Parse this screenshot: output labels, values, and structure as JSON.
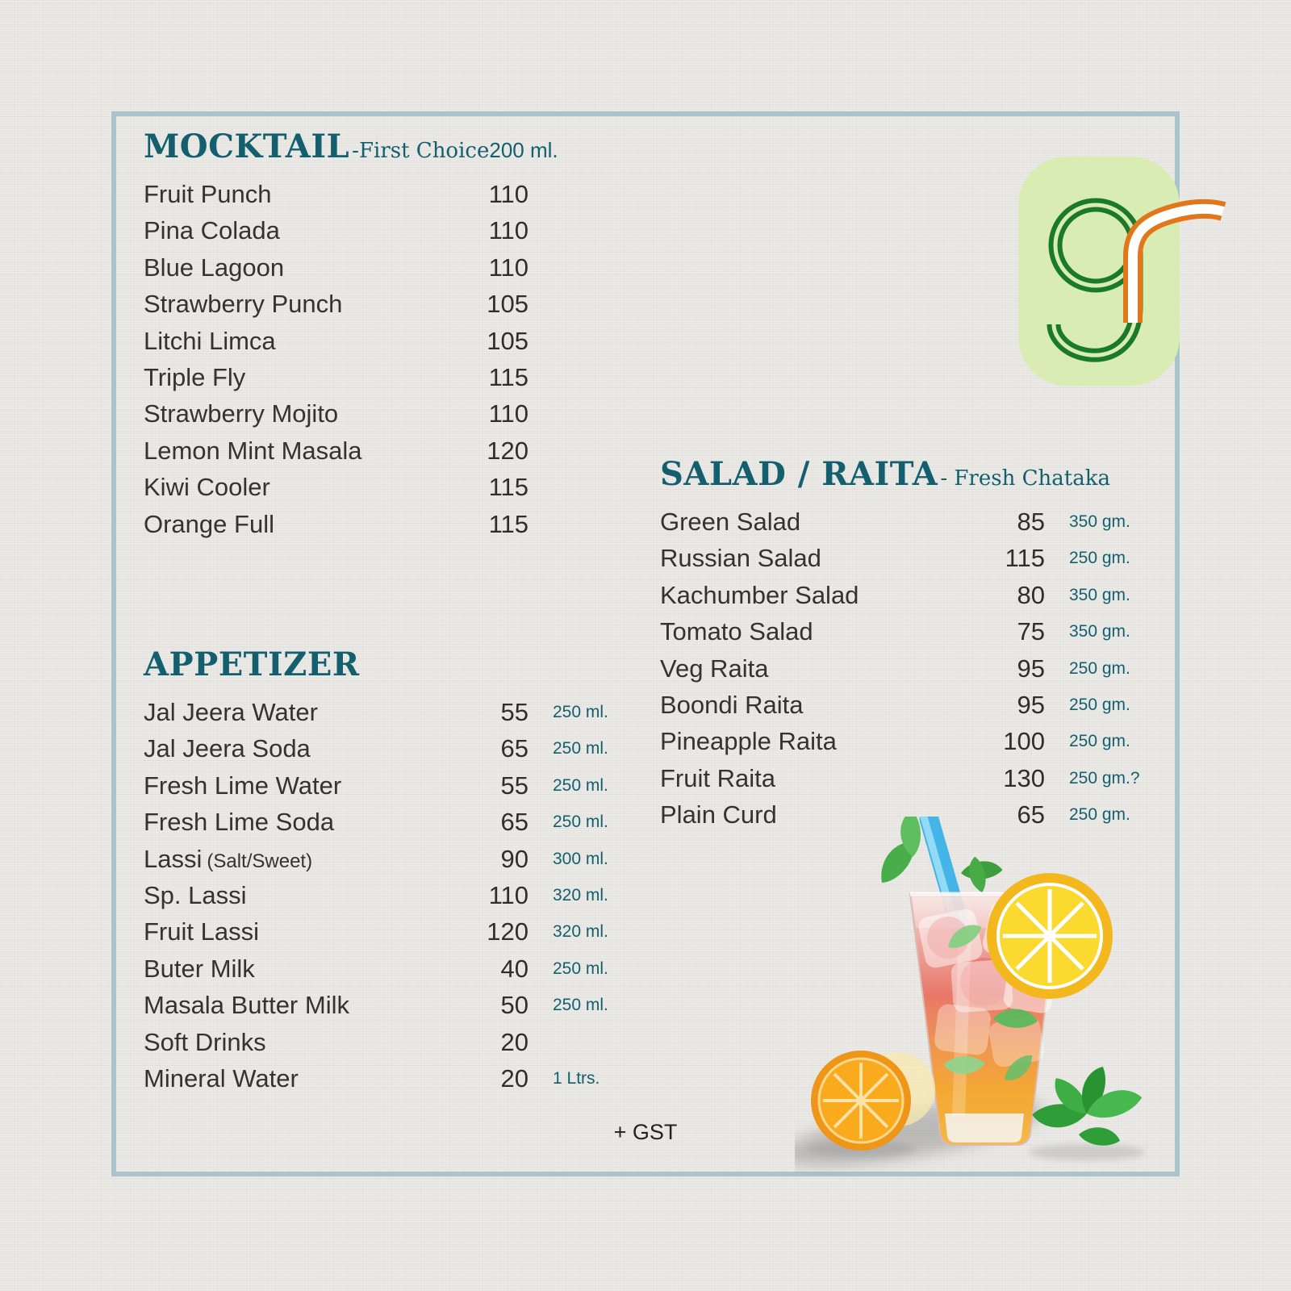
{
  "menu": {
    "footer_note": "+ GST",
    "colors": {
      "accent_teal": "#135f6e",
      "item_text": "#2e2e2e",
      "frame_border": "#a9c5cb",
      "logo_green": "#1a7a2a",
      "logo_background": "#d9ecb4",
      "logo_orange": "#e1761b"
    },
    "logo": {
      "name": "g-monogram-logo"
    },
    "sections": [
      {
        "title": "MOCKTAIL",
        "subtitle": "-First Choice",
        "size_header": "200 ml.",
        "items": [
          {
            "name": "Fruit Punch",
            "note": "",
            "price": "110",
            "unit": ""
          },
          {
            "name": "Pina Colada",
            "note": "",
            "price": "110",
            "unit": ""
          },
          {
            "name": "Blue Lagoon",
            "note": "",
            "price": "110",
            "unit": ""
          },
          {
            "name": "Strawberry Punch",
            "note": "",
            "price": "105",
            "unit": ""
          },
          {
            "name": "Litchi Limca",
            "note": "",
            "price": "105",
            "unit": ""
          },
          {
            "name": "Triple Fly",
            "note": "",
            "price": "115",
            "unit": ""
          },
          {
            "name": "Strawberry Mojito",
            "note": "",
            "price": "110",
            "unit": ""
          },
          {
            "name": "Lemon Mint Masala",
            "note": "",
            "price": "120",
            "unit": ""
          },
          {
            "name": "Kiwi Cooler",
            "note": "",
            "price": "115",
            "unit": ""
          },
          {
            "name": "Orange Full",
            "note": "",
            "price": "115",
            "unit": ""
          }
        ]
      },
      {
        "title": "APPETIZER",
        "subtitle": "",
        "size_header": "",
        "items": [
          {
            "name": "Jal Jeera Water",
            "note": "",
            "price": "55",
            "unit": "250 ml."
          },
          {
            "name": "Jal Jeera Soda",
            "note": "",
            "price": "65",
            "unit": "250 ml."
          },
          {
            "name": "Fresh Lime Water",
            "note": "",
            "price": "55",
            "unit": "250 ml."
          },
          {
            "name": "Fresh Lime Soda",
            "note": "",
            "price": "65",
            "unit": "250 ml."
          },
          {
            "name": "Lassi",
            "note": "(Salt/Sweet)",
            "price": "90",
            "unit": "300 ml."
          },
          {
            "name": "Sp. Lassi",
            "note": "",
            "price": "110",
            "unit": "320 ml."
          },
          {
            "name": "Fruit Lassi",
            "note": "",
            "price": "120",
            "unit": "320 ml."
          },
          {
            "name": "Buter Milk",
            "note": "",
            "price": "40",
            "unit": "250 ml."
          },
          {
            "name": "Masala Butter Milk",
            "note": "",
            "price": "50",
            "unit": "250 ml."
          },
          {
            "name": "Soft Drinks",
            "note": "",
            "price": "20",
            "unit": ""
          },
          {
            "name": "Mineral Water",
            "note": "",
            "price": "20",
            "unit": "1 Ltrs."
          }
        ]
      },
      {
        "title": "SALAD / RAITA",
        "subtitle": " - Fresh Chataka",
        "size_header": "",
        "items": [
          {
            "name": "Green Salad",
            "note": "",
            "price": "85",
            "unit": "350 gm."
          },
          {
            "name": "Russian Salad",
            "note": "",
            "price": "115",
            "unit": "250 gm."
          },
          {
            "name": "Kachumber Salad",
            "note": "",
            "price": "80",
            "unit": "350 gm."
          },
          {
            "name": "Tomato Salad",
            "note": "",
            "price": "75",
            "unit": "350 gm."
          },
          {
            "name": "Veg Raita",
            "note": "",
            "price": "95",
            "unit": "250 gm."
          },
          {
            "name": "Boondi Raita",
            "note": "",
            "price": "95",
            "unit": "250 gm."
          },
          {
            "name": "Pineapple Raita",
            "note": "",
            "price": "100",
            "unit": "250 gm."
          },
          {
            "name": "Fruit Raita",
            "note": "",
            "price": "130",
            "unit": "250 gm.?"
          },
          {
            "name": "Plain Curd",
            "note": "",
            "price": "65",
            "unit": "250 gm."
          }
        ]
      }
    ]
  }
}
